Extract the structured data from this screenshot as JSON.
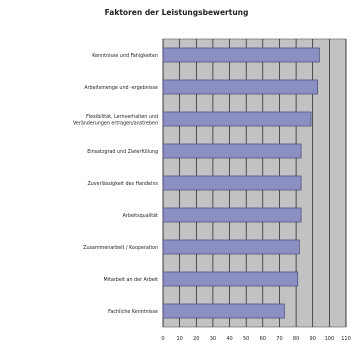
{
  "chart_data": {
    "type": "bar",
    "orientation": "horizontal",
    "title": "Faktoren der Leistungsbewertung",
    "categories": [
      "Kenntnisse und Fähigkeiten",
      "Arbeitsmenge und -ergebnisse",
      "Flexibilität, Lernverhalten und Veränderungen ertragen/anstreben",
      "Einsatzgrad und Zielerfüllung",
      "Zuverlässigkeit des Handelns",
      "Arbeitsqualität",
      "Zusammenarbeit / Kooperation",
      "Mitarbeit an der Arbeit",
      "Fachliche Kenntnisse"
    ],
    "values": [
      94,
      93,
      89,
      83,
      83,
      83,
      82,
      81,
      73
    ],
    "xlim": [
      0,
      110
    ],
    "xticks": [
      0,
      10,
      20,
      30,
      40,
      50,
      60,
      70,
      80,
      90,
      100,
      110
    ],
    "grid": true,
    "colors": {
      "bar_fill": "#8c8fc2",
      "bar_stroke": "#3a3d6e",
      "plot_background": "#c2c2c2",
      "gridline": "#000000"
    }
  }
}
